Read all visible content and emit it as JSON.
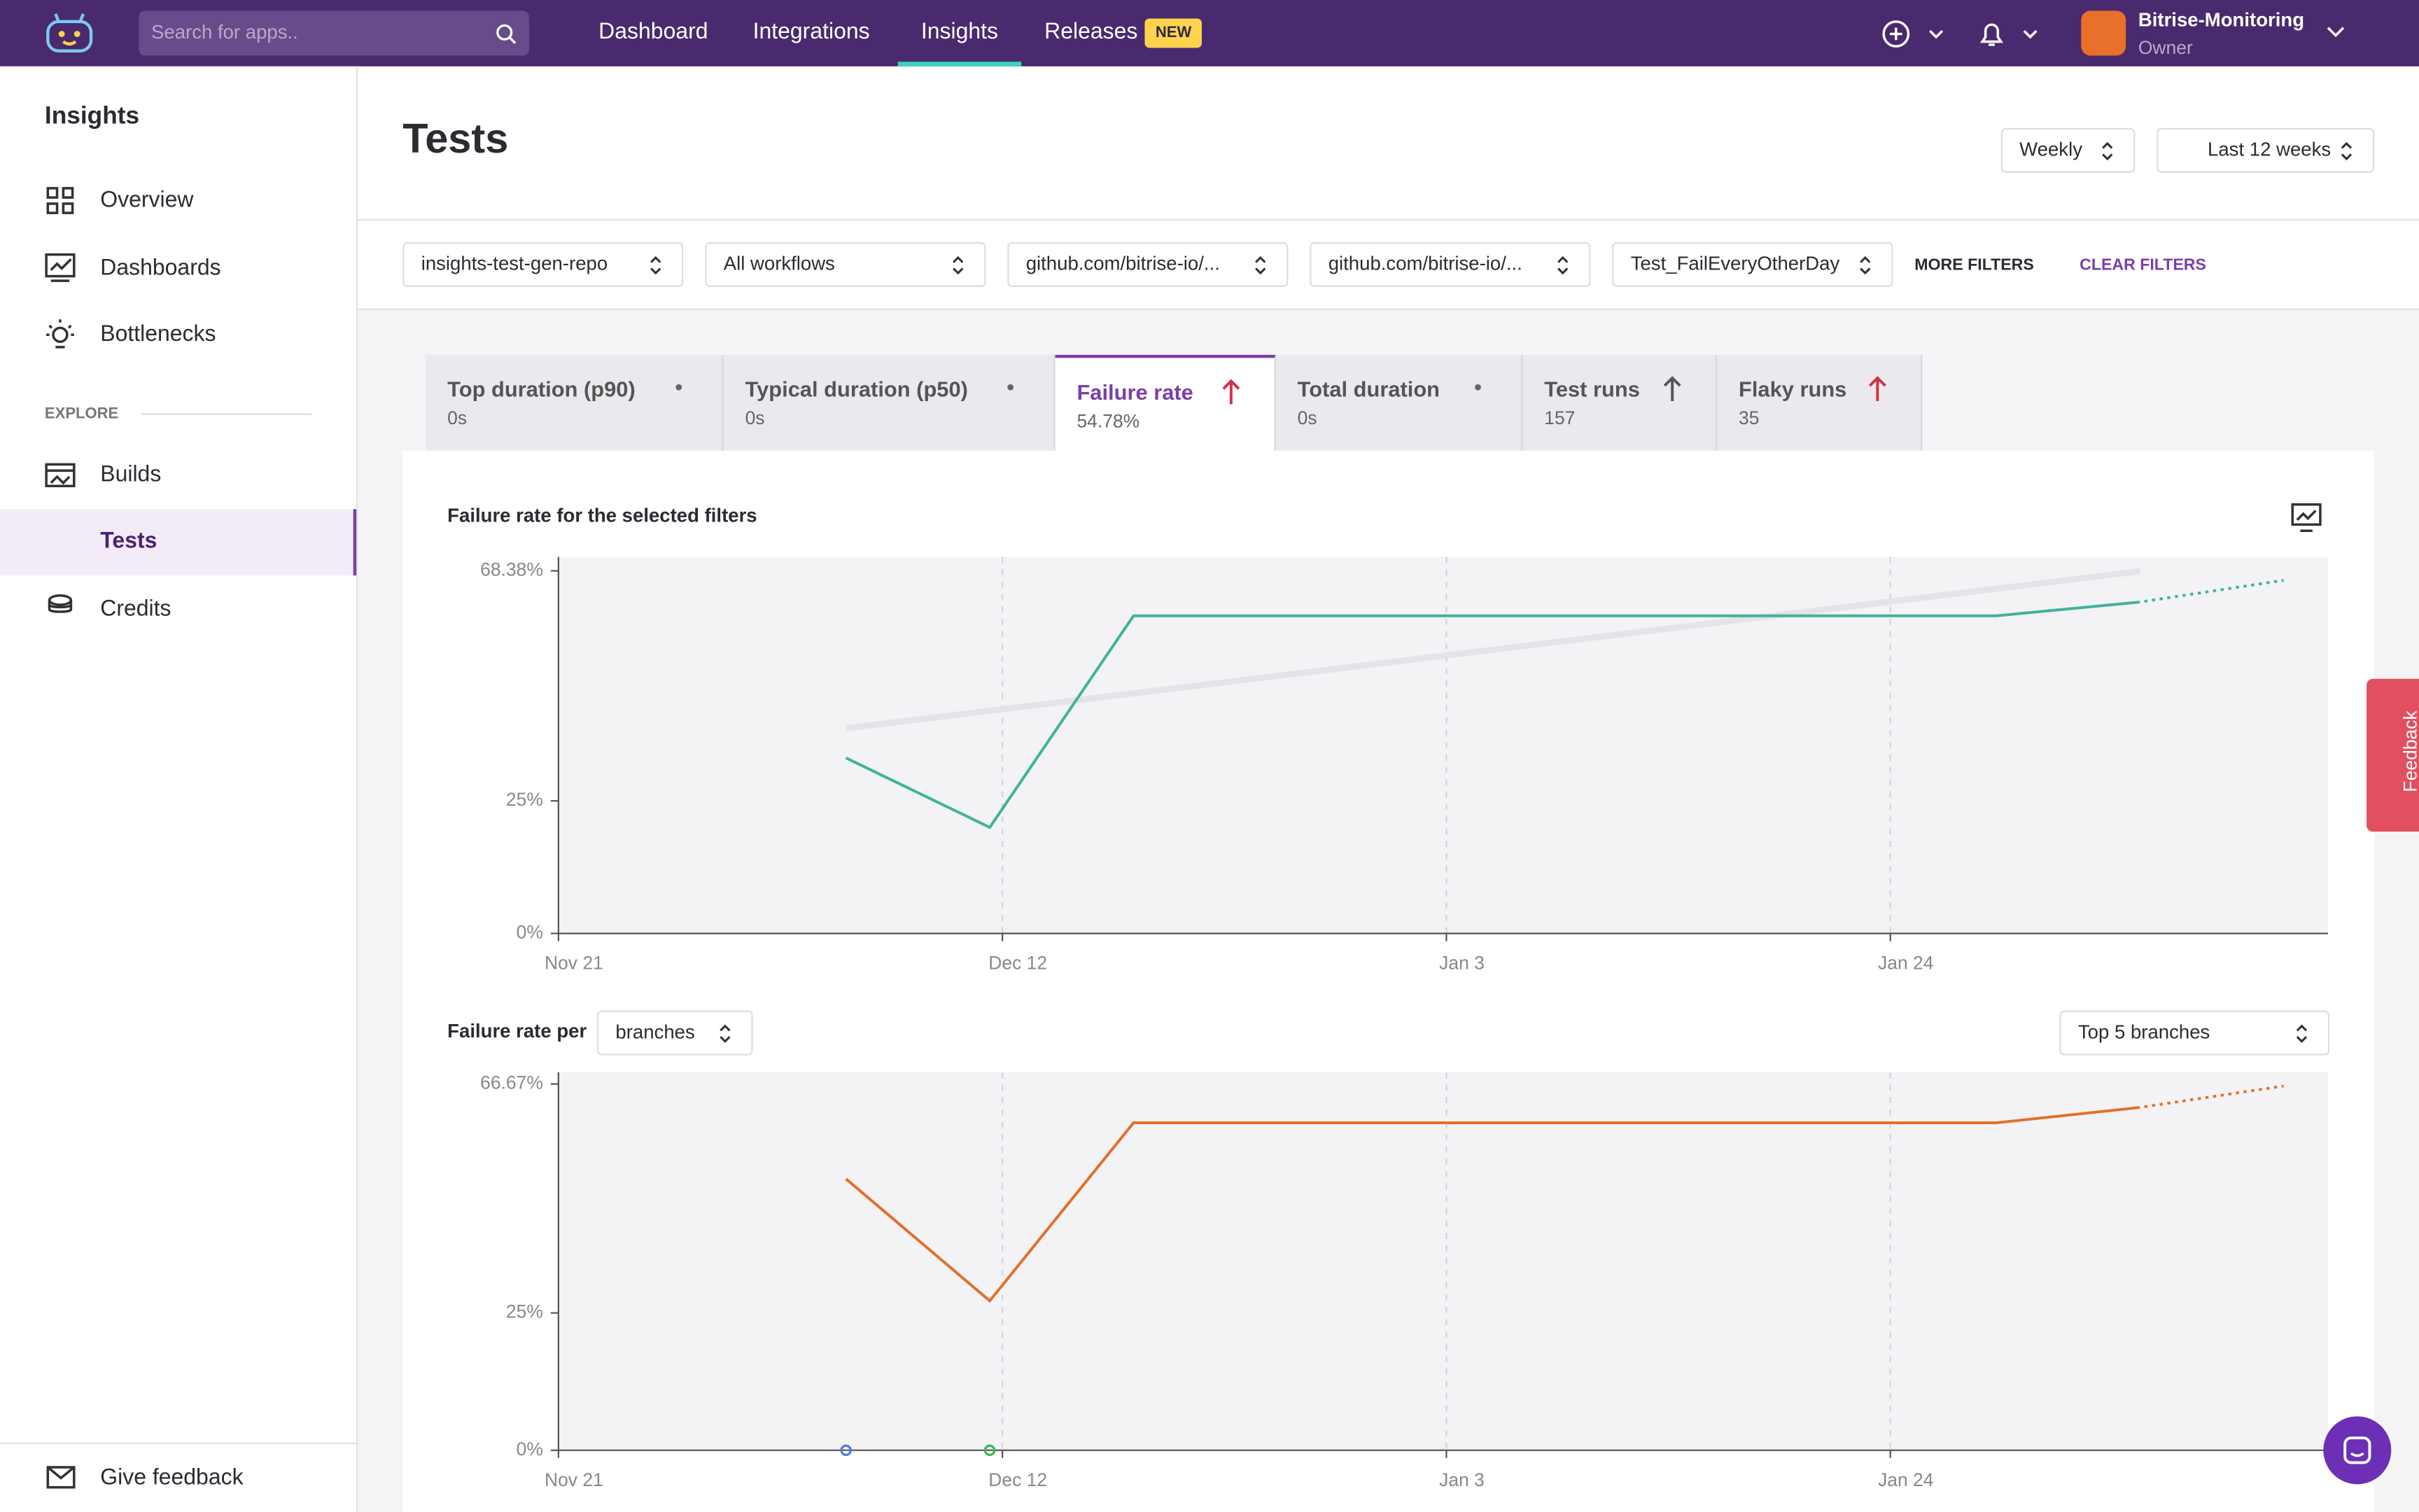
{
  "topbar": {
    "search_placeholder": "Search for apps..",
    "nav": [
      "Dashboard",
      "Integrations",
      "Insights",
      "Releases"
    ],
    "badge": "NEW",
    "account": {
      "name": "Bitrise-Monitoring",
      "role": "Owner"
    }
  },
  "sidebar": {
    "title": "Insights",
    "items": [
      "Overview",
      "Dashboards",
      "Bottlenecks"
    ],
    "section": "EXPLORE",
    "explore_items": [
      "Builds",
      "Tests",
      "Credits"
    ],
    "footer": "Give feedback"
  },
  "header": {
    "title": "Tests",
    "period": "Weekly",
    "range": "Last 12 weeks"
  },
  "filters": {
    "selects": [
      "insights-test-gen-repo",
      "All workflows",
      "github.com/bitrise-io/...",
      "github.com/bitrise-io/...",
      "Test_FailEveryOtherDay"
    ],
    "more": "MORE FILTERS",
    "clear": "CLEAR FILTERS"
  },
  "tabs": [
    {
      "label": "Top duration (p90)",
      "value": "0s",
      "trend": "none"
    },
    {
      "label": "Typical duration (p50)",
      "value": "0s",
      "trend": "none"
    },
    {
      "label": "Failure rate",
      "value": "54.78%",
      "trend": "up",
      "trend_color": "#d0324a"
    },
    {
      "label": "Total duration",
      "value": "0s",
      "trend": "none"
    },
    {
      "label": "Test runs",
      "value": "157",
      "trend": "up",
      "trend_color": "#555"
    },
    {
      "label": "Flaky runs",
      "value": "35",
      "trend": "up",
      "trend_color": "#d0324a"
    }
  ],
  "feedback": "Feedback",
  "chart_data": [
    {
      "type": "line",
      "title": "Failure rate for the selected filters",
      "x": [
        13.6,
        20.4,
        27.2,
        34,
        40.8,
        47.6,
        54.4,
        61.2,
        68,
        74.8,
        81.6
      ],
      "xlim": [
        0,
        83.7
      ],
      "xticks": [
        {
          "value": 0,
          "label": "Nov 21"
        },
        {
          "value": 21,
          "label": "Dec 12"
        },
        {
          "value": 42,
          "label": "Jan 3"
        },
        {
          "value": 63,
          "label": "Jan 24"
        }
      ],
      "ylim": [
        0,
        71
      ],
      "yticks": [
        {
          "value": 0,
          "label": "0%"
        },
        {
          "value": 25,
          "label": "25%"
        },
        {
          "value": 68.38,
          "label": "68.38%"
        }
      ],
      "series": [
        {
          "color": "#3fb39a",
          "values": [
            33.1,
            20,
            59.9,
            59.9,
            59.9,
            59.9,
            59.9,
            59.9,
            59.9,
            62.5,
            66.6
          ],
          "projected_from": 10
        }
      ],
      "trend": {
        "x": [
          13.6,
          74.8
        ],
        "values": [
          38.7,
          68.3
        ],
        "color": "#e5e3e8"
      }
    },
    {
      "type": "line",
      "title": "Failure rate per",
      "group_by": "branches",
      "selector": "Top 5 branches",
      "x": [
        13.6,
        20.4,
        27.2,
        34,
        40.8,
        47.6,
        54.4,
        61.2,
        68,
        74.8,
        81.6
      ],
      "xlim": [
        0,
        83.7
      ],
      "xticks": [
        {
          "value": 0,
          "label": "Nov 21"
        },
        {
          "value": 21,
          "label": "Dec 12"
        },
        {
          "value": 42,
          "label": "Jan 3"
        },
        {
          "value": 63,
          "label": "Jan 24"
        }
      ],
      "ylim": [
        0,
        68.8
      ],
      "yticks": [
        {
          "value": 0,
          "label": "0%"
        },
        {
          "value": 25,
          "label": "25%"
        },
        {
          "value": 66.67,
          "label": "66.67%"
        }
      ],
      "series": [
        {
          "color": "#e2702a",
          "values": [
            49.4,
            27.2,
            59.6,
            59.6,
            59.6,
            59.6,
            59.6,
            59.6,
            59.6,
            62.4,
            66.3
          ],
          "projected_from": 10
        },
        {
          "color": "#4d7fd6",
          "values": [
            0,
            null,
            null,
            null,
            null,
            null,
            null,
            null,
            null,
            null,
            null
          ]
        },
        {
          "color": "#3fb35a",
          "values": [
            null,
            0,
            null,
            null,
            null,
            null,
            null,
            null,
            null,
            null,
            null
          ]
        }
      ]
    }
  ]
}
